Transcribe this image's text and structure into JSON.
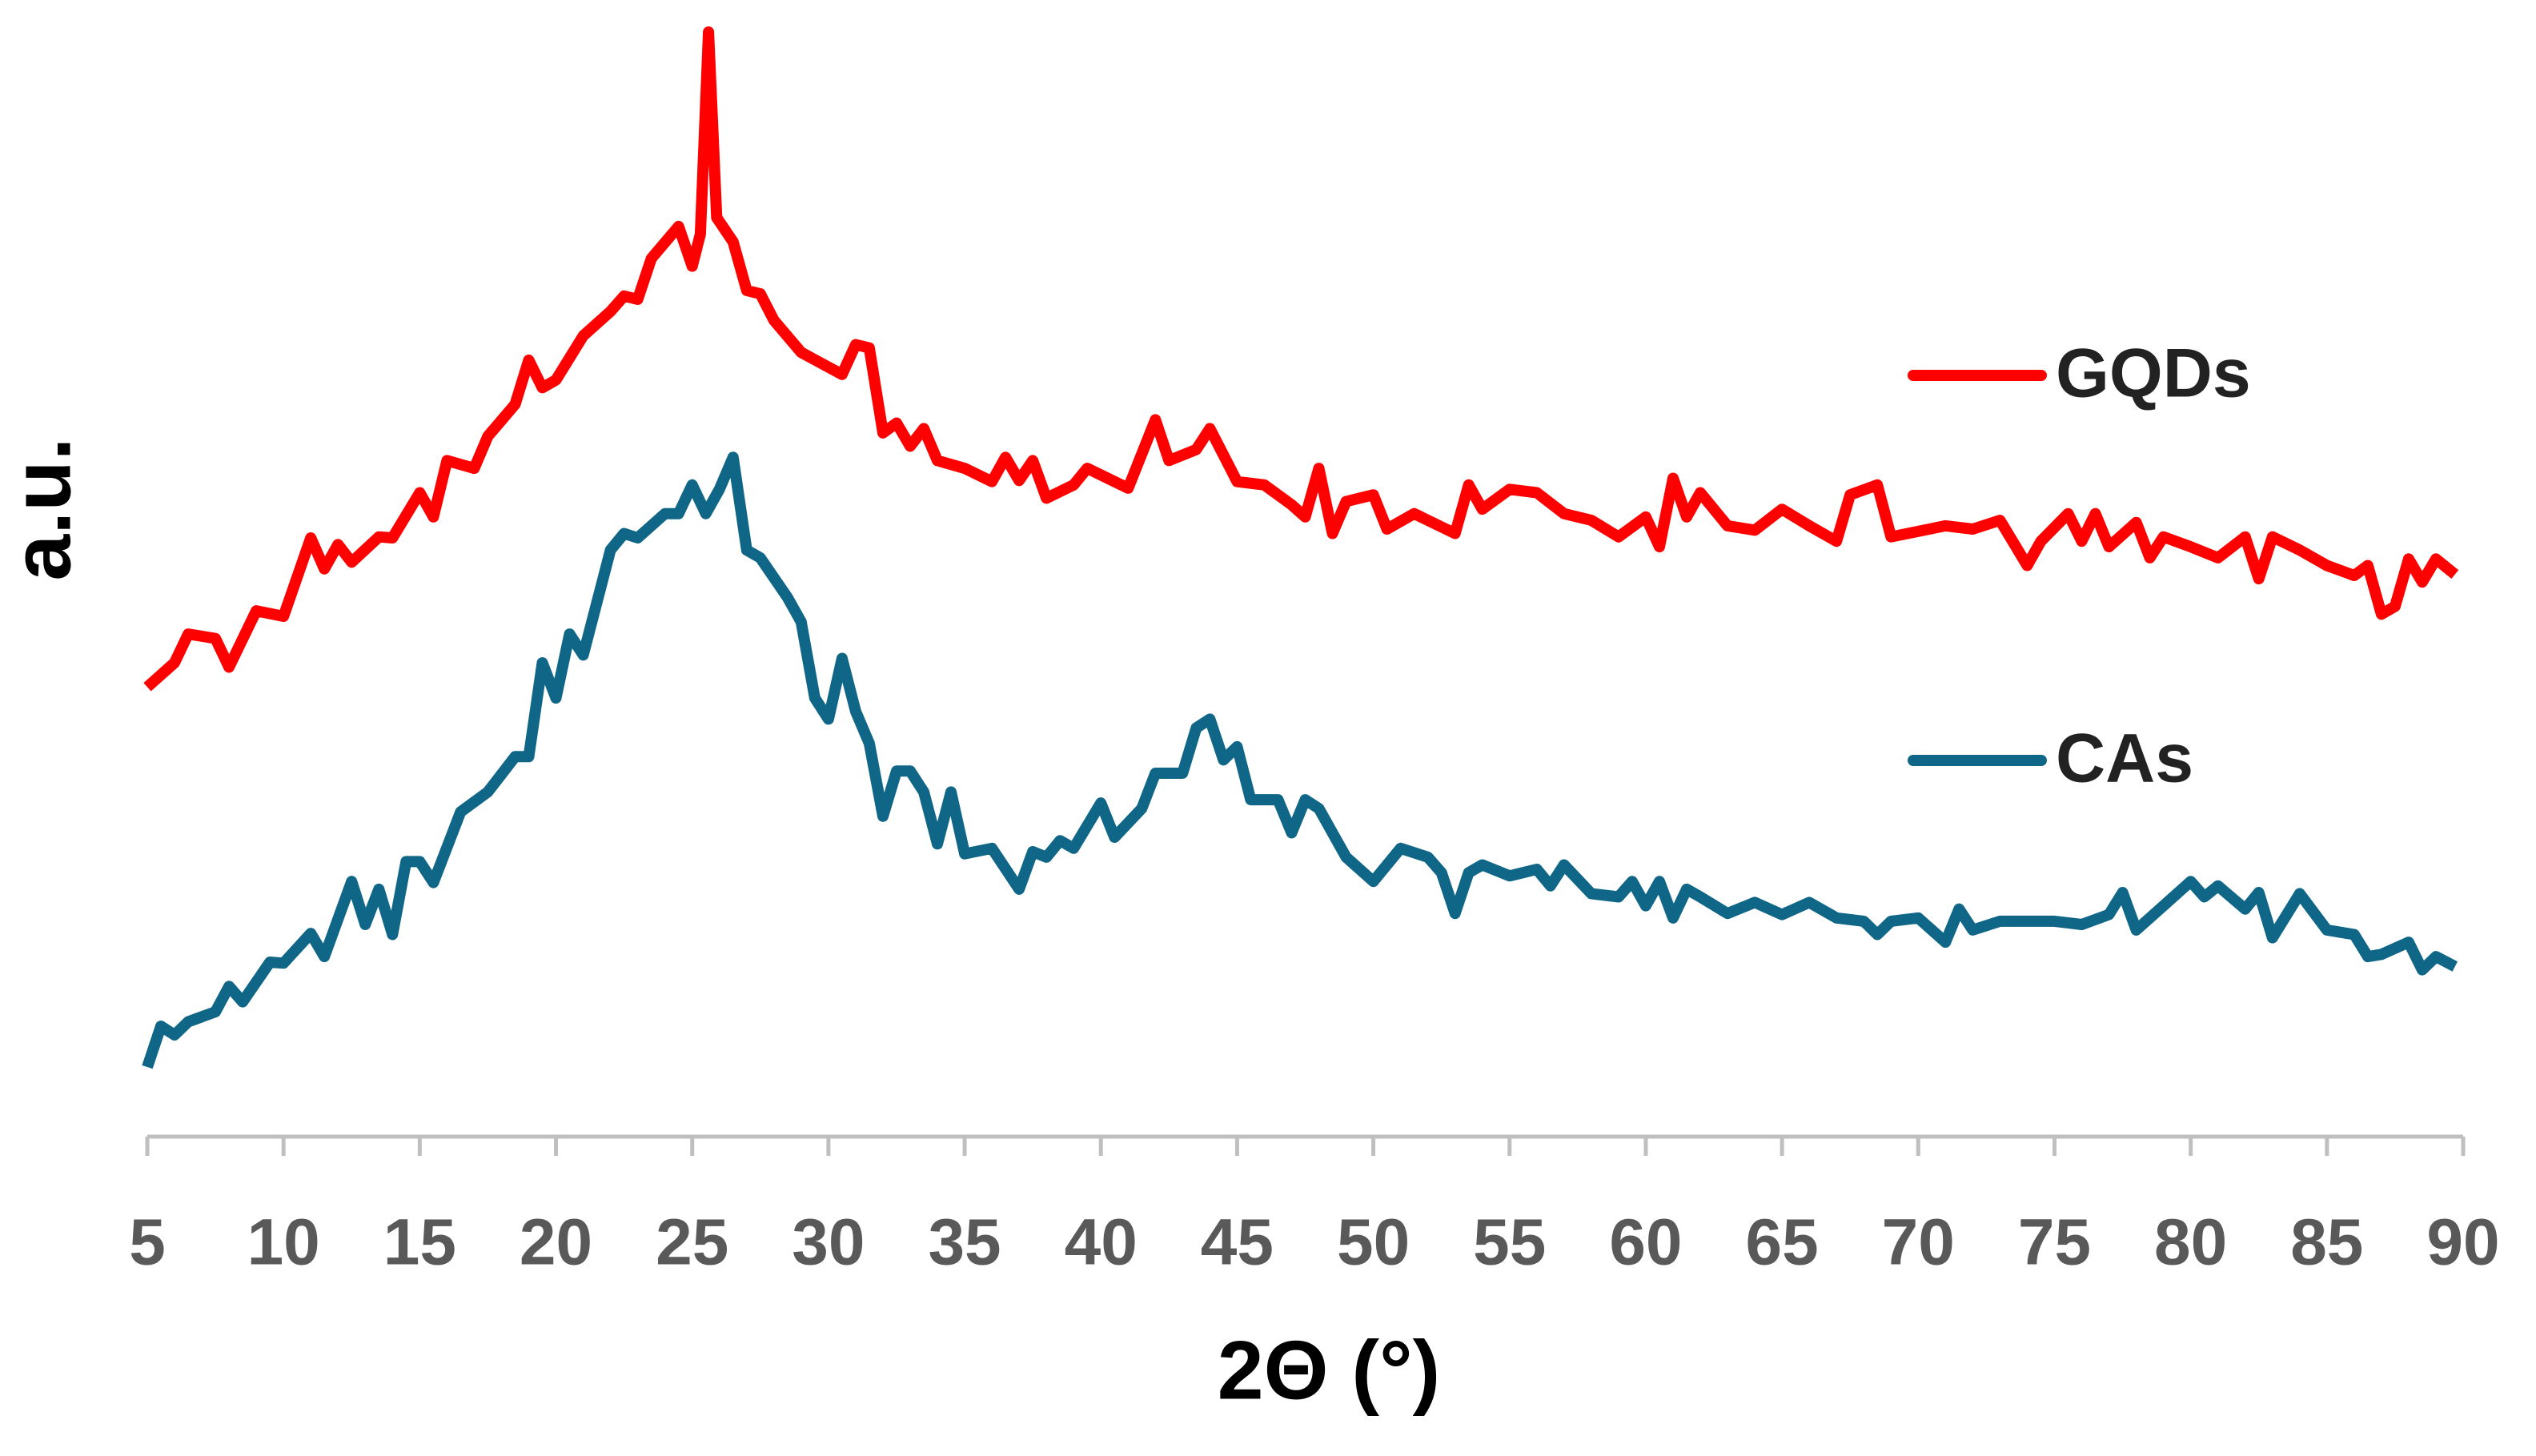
{
  "chart_data": {
    "type": "line",
    "x_label": "2Θ (°)",
    "y_label": "a.u.",
    "xlim": [
      5,
      90
    ],
    "xticks": [
      5,
      10,
      15,
      20,
      25,
      30,
      35,
      40,
      45,
      50,
      55,
      60,
      65,
      70,
      75,
      80,
      85,
      90
    ],
    "ylim": [
      0,
      100
    ],
    "grid": false,
    "legend": "right",
    "series": [
      {
        "name": "GQDs",
        "color": "#ff0000",
        "x": [
          5,
          6,
          6.5,
          7.5,
          8,
          9,
          10,
          11,
          11.5,
          12,
          12.5,
          13.5,
          14,
          15,
          15.5,
          16,
          17,
          17.5,
          18.5,
          19,
          19.5,
          20,
          21,
          22,
          22.5,
          23,
          23.5,
          24.5,
          25,
          25.3,
          25.6,
          25.9,
          26.5,
          27,
          27.5,
          28,
          29,
          30.5,
          31,
          31.5,
          32,
          32.5,
          33,
          33.5,
          34,
          35,
          36,
          36.5,
          37,
          37.5,
          38,
          39,
          39.5,
          41,
          42,
          42.5,
          43.5,
          44,
          45,
          46,
          47,
          47.5,
          48,
          48.5,
          49,
          50,
          50.5,
          51.5,
          53,
          53.5,
          54,
          55,
          56,
          57,
          58,
          59,
          60,
          60.5,
          61,
          61.5,
          62,
          63,
          64,
          65,
          66,
          67,
          67.5,
          68.5,
          69,
          71,
          72,
          73,
          74,
          74.5,
          75.5,
          76,
          76.5,
          77,
          78,
          78.5,
          79,
          80,
          81,
          82,
          82.5,
          83,
          84,
          85,
          86,
          86.5,
          87,
          87.5,
          88,
          88.5,
          89,
          89.7
        ],
        "values": [
          40.7,
          42.9,
          45.5,
          45.1,
          42.5,
          47.6,
          47.1,
          54.2,
          51.4,
          53.6,
          52.0,
          54.3,
          54.2,
          58.3,
          56.1,
          61.2,
          60.5,
          63.4,
          66.3,
          70.3,
          67.8,
          68.5,
          72.5,
          74.7,
          76.1,
          75.8,
          79.5,
          82.4,
          78.8,
          81.7,
          100,
          83.2,
          81.0,
          76.6,
          76.3,
          73.9,
          71.0,
          69.0,
          71.7,
          71.4,
          63.7,
          64.6,
          62.5,
          64.1,
          61.2,
          60.5,
          59.3,
          61.5,
          59.4,
          61.2,
          57.8,
          59.0,
          60.5,
          58.7,
          64.9,
          61.2,
          62.2,
          64.1,
          59.3,
          59.0,
          57.2,
          56.1,
          60.5,
          54.6,
          57.5,
          58.1,
          55.0,
          56.4,
          54.6,
          59.0,
          56.8,
          58.6,
          58.3,
          56.4,
          55.8,
          54.3,
          56.1,
          53.4,
          59.6,
          56.1,
          58.3,
          55.3,
          54.9,
          56.8,
          55.3,
          53.9,
          58.1,
          59.0,
          54.3,
          55.3,
          55.0,
          55.8,
          51.7,
          53.9,
          56.4,
          53.9,
          56.4,
          53.4,
          55.6,
          52.4,
          54.3,
          53.4,
          52.4,
          54.3,
          50.5,
          54.3,
          53.1,
          51.7,
          50.8,
          51.7,
          47.3,
          48.0,
          52.3,
          50.2,
          52.3,
          50.9
        ]
      },
      {
        "name": "CAs",
        "color": "#0f6687",
        "x": [
          5,
          5.5,
          6,
          6.5,
          7.5,
          8,
          8.5,
          9.5,
          10,
          11,
          11.5,
          12.5,
          13,
          13.5,
          14,
          14.5,
          15,
          15.5,
          16.5,
          17.5,
          18.5,
          19,
          19.5,
          20,
          20.5,
          21,
          22,
          22.5,
          23,
          24,
          24.5,
          25,
          25.5,
          26,
          26.5,
          27,
          27.5,
          28.5,
          29,
          29.5,
          30,
          30.5,
          31,
          31.5,
          32,
          32.5,
          33,
          33.5,
          34,
          34.5,
          35,
          36,
          37,
          37.5,
          38,
          38.5,
          39,
          40,
          40.5,
          41.5,
          42,
          43,
          43.5,
          44,
          44.5,
          45,
          45.5,
          46.5,
          47,
          47.5,
          48,
          49,
          50,
          51,
          52,
          52.5,
          53,
          53.5,
          54,
          55,
          56,
          56.5,
          57,
          58,
          59,
          59.5,
          60,
          60.5,
          61,
          61.5,
          62,
          63,
          64,
          65,
          66,
          67,
          68,
          68.5,
          69,
          70,
          71,
          71.5,
          72,
          73,
          74,
          75,
          76,
          77,
          77.5,
          78,
          79,
          80,
          80.5,
          81,
          82,
          82.5,
          83,
          84,
          85,
          86,
          86.5,
          87,
          88,
          88.5,
          89,
          89.7
        ],
        "values": [
          6.3,
          10.0,
          9.2,
          10.4,
          11.3,
          13.6,
          12.2,
          15.8,
          15.7,
          18.4,
          16.3,
          23.1,
          19.2,
          22.4,
          18.3,
          24.9,
          24.9,
          23.0,
          29.4,
          31.2,
          34.4,
          34.4,
          42.9,
          39.7,
          45.5,
          43.6,
          53.1,
          54.6,
          54.2,
          56.4,
          56.4,
          59.0,
          56.4,
          58.6,
          61.5,
          53.1,
          52.4,
          48.8,
          46.6,
          39.7,
          37.8,
          43.3,
          38.5,
          35.6,
          29.0,
          33.1,
          33.1,
          31.2,
          26.5,
          31.2,
          25.6,
          26.1,
          22.4,
          25.8,
          25.3,
          26.8,
          26.1,
          30.2,
          27.1,
          29.7,
          32.9,
          32.9,
          37.0,
          37.8,
          34.1,
          35.3,
          30.5,
          30.5,
          27.5,
          30.5,
          29.7,
          25.3,
          23.1,
          26.1,
          25.3,
          23.9,
          20.2,
          23.9,
          24.6,
          23.6,
          24.2,
          22.7,
          24.6,
          22.0,
          21.7,
          23.1,
          20.9,
          23.1,
          19.8,
          22.4,
          21.7,
          20.2,
          21.2,
          20.1,
          21.2,
          19.8,
          19.5,
          18.3,
          19.5,
          19.8,
          17.6,
          20.6,
          18.7,
          19.5,
          19.5,
          19.5,
          19.2,
          20.1,
          22.1,
          18.7,
          20.9,
          23.1,
          21.7,
          22.7,
          20.6,
          22.1,
          18.0,
          22.0,
          18.7,
          18.3,
          16.3,
          16.5,
          17.6,
          15.1,
          16.3,
          15.4
        ]
      }
    ]
  }
}
